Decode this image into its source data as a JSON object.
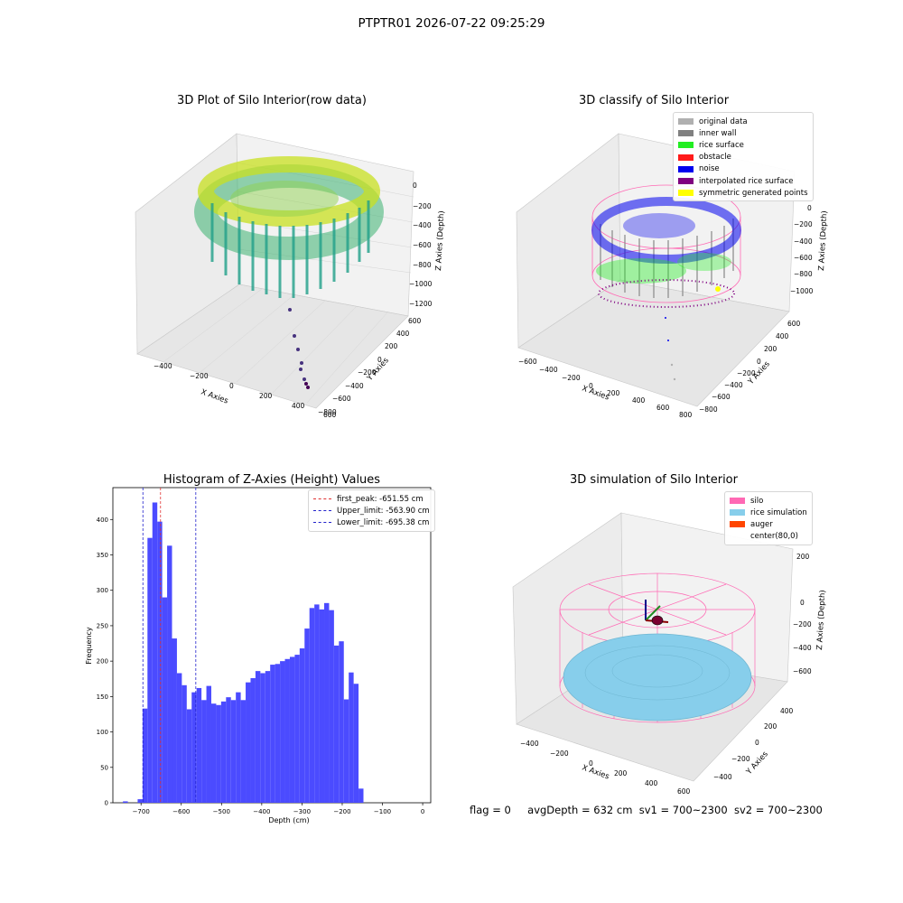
{
  "figure": {
    "suptitle": "PTPTR01 2026-07-22 09:25:29",
    "status": {
      "flag": "flag = 0",
      "avg_depth": "avgDepth = 632 cm",
      "sv1": "sv1 = 700~2300",
      "sv2": "sv2 = 700~2300"
    }
  },
  "colors": {
    "bar": "#4b4bff",
    "first_peak": "#e03030",
    "limits": "#2020cc",
    "original": "#b0b0b0",
    "inner_wall": "#808080",
    "rice_surface": "#22ee22",
    "obstacle": "#ff1a1a",
    "noise": "#0000ee",
    "interpolated": "#800080",
    "symmetric": "#ffff00",
    "silo": "#ff69b4",
    "rice_sim": "#87ceeb",
    "auger": "#ff4500"
  },
  "chart_data": [
    {
      "type": "scatter",
      "title": "3D Plot of Silo Interior(row data)",
      "xlabel": "X Axies",
      "ylabel": "Y Axies",
      "zlabel": "Z Axies (Depth)",
      "x_ticks": [
        "−400",
        "−200",
        "0",
        "200",
        "400",
        "600"
      ],
      "y_ticks": [
        "600",
        "400",
        "200",
        "0",
        "−200",
        "−400",
        "−600",
        "−800"
      ],
      "z_ticks": [
        "0",
        "−200",
        "−400",
        "−600",
        "−800",
        "−1000",
        "−1200"
      ]
    },
    {
      "type": "scatter",
      "title": "3D classify of Silo Interior",
      "xlabel": "X Axies",
      "ylabel": "Y Axies",
      "zlabel": "Z Axies (Depth)",
      "x_ticks": [
        "−600",
        "−400",
        "−200",
        "0",
        "200",
        "400",
        "600",
        "800"
      ],
      "y_ticks": [
        "600",
        "400",
        "200",
        "0",
        "−200",
        "−400",
        "−600",
        "−800"
      ],
      "z_ticks": [
        "0",
        "−200",
        "−400",
        "−600",
        "−800",
        "−1000"
      ],
      "legend": [
        {
          "label": "original data",
          "color": "#b0b0b0"
        },
        {
          "label": "inner wall",
          "color": "#808080"
        },
        {
          "label": "rice surface",
          "color": "#22ee22"
        },
        {
          "label": "obstacle",
          "color": "#ff1a1a"
        },
        {
          "label": "noise",
          "color": "#0000ee"
        },
        {
          "label": "interpolated rice surface",
          "color": "#800080"
        },
        {
          "label": "symmetric generated points",
          "color": "#ffff00"
        }
      ]
    },
    {
      "type": "bar",
      "title": "Histogram of Z-Axies (Height) Values",
      "xlabel": "Depth (cm)",
      "ylabel": "Frequency",
      "xlim": [
        -770,
        20
      ],
      "ylim": [
        0,
        445
      ],
      "x_ticks": [
        -700,
        -600,
        -500,
        -400,
        -300,
        -200,
        -100,
        0
      ],
      "x_tick_labels": [
        "−700",
        "−600",
        "−500",
        "−400",
        "−300",
        "−200",
        "−100",
        "0"
      ],
      "y_ticks": [
        0,
        50,
        100,
        150,
        200,
        250,
        300,
        350,
        400
      ],
      "bin_start": -745,
      "bin_width": 12.2,
      "values": [
        2,
        0,
        0,
        5,
        133,
        374,
        424,
        397,
        290,
        363,
        232,
        183,
        166,
        132,
        156,
        162,
        145,
        165,
        140,
        138,
        143,
        149,
        145,
        156,
        145,
        170,
        176,
        186,
        183,
        186,
        195,
        196,
        200,
        203,
        206,
        209,
        218,
        246,
        275,
        280,
        273,
        282,
        272,
        222,
        228,
        146,
        184,
        168,
        20
      ],
      "vlines": [
        {
          "name": "first_peak",
          "label": "first_peak: -651.55 cm",
          "x": -651.55,
          "color": "#e03030"
        },
        {
          "name": "upper_limit",
          "label": "Upper_limit: -563.90 cm",
          "x": -563.9,
          "color": "#2020cc"
        },
        {
          "name": "lower_limit",
          "label": "Lower_limit: -695.38 cm",
          "x": -695.38,
          "color": "#2020cc"
        }
      ],
      "legend_position": "upper right"
    },
    {
      "type": "scatter",
      "title": "3D simulation of Silo Interior",
      "xlabel": "X Axies",
      "ylabel": "Y Axies",
      "zlabel": "Z Axies (Depth)",
      "x_ticks": [
        "−400",
        "−200",
        "0",
        "200",
        "400",
        "600"
      ],
      "y_ticks": [
        "400",
        "200",
        "0",
        "−200",
        "−400"
      ],
      "z_ticks": [
        "200",
        "0",
        "−200",
        "−400",
        "−600"
      ],
      "legend": [
        {
          "label": "silo",
          "color": "#ff69b4"
        },
        {
          "label": "rice simulation",
          "color": "#87ceeb"
        },
        {
          "label": "auger",
          "color": "#ff4500"
        },
        {
          "label": "center(80,0)",
          "color": "none"
        }
      ]
    }
  ]
}
